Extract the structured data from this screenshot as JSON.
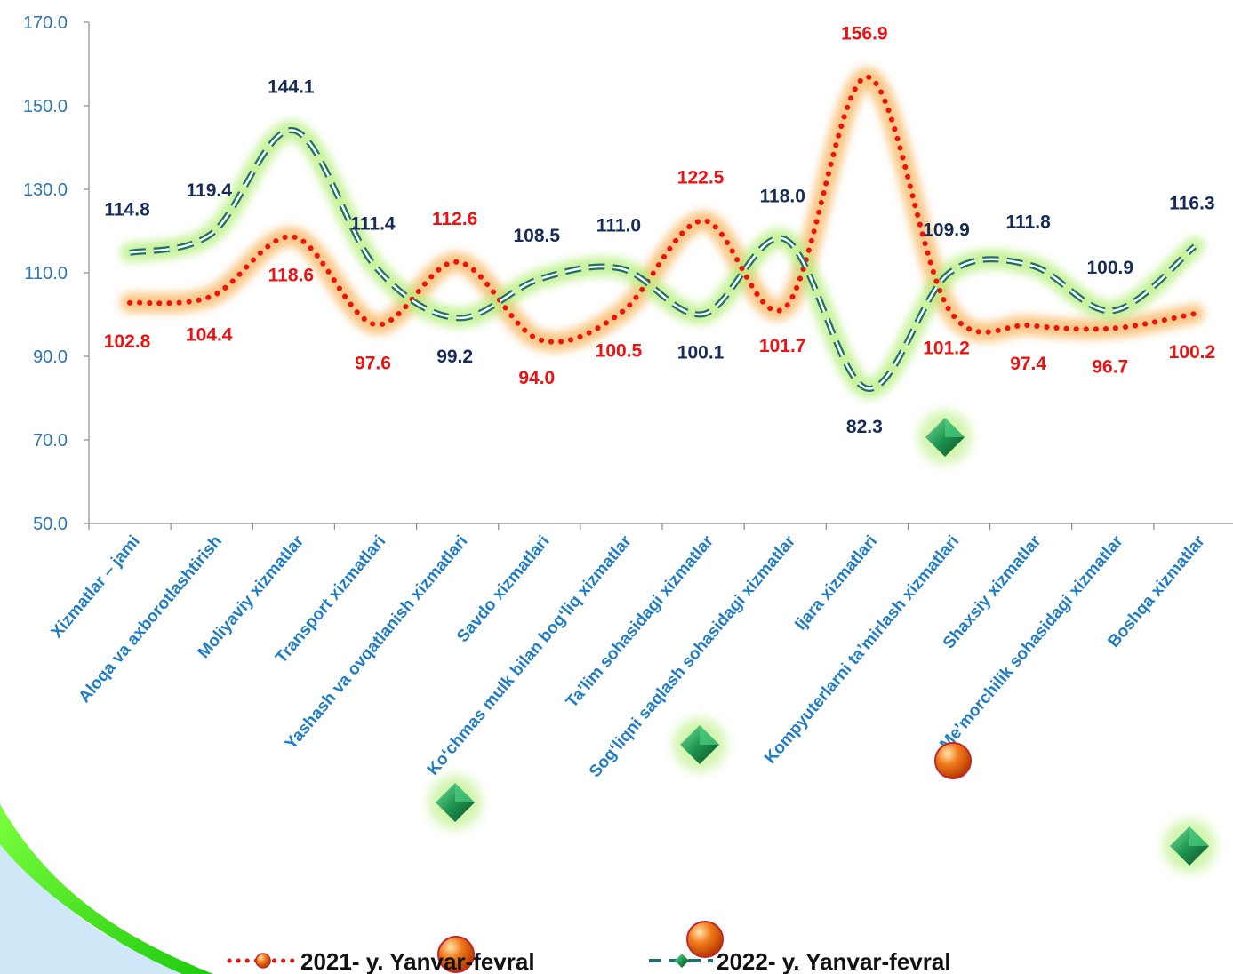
{
  "chart_data": {
    "type": "line",
    "categories": [
      "Xizmatlar – jami",
      "Aloqa va axborotlashtirish",
      "Moliyaviy xizmatlar",
      "Transport xizmatlari",
      "Yashash va ovqatlanish xizmatlari",
      "Savdo xizmatlari",
      "Ko‘chmas mulk bilan bog‘liq xizmatlar",
      "Ta’lim sohasidagi xizmatlar",
      "Sog‘liqni saqlash sohasidagi xizmatlar",
      "Ijara xizmatlari",
      "Kompyuterlarni ta’mirlash xizmatlari",
      "Shaxsiy xizmatlar",
      "Me’morchilik sohasidagi xizmatlar",
      "Boshqa xizmatlar"
    ],
    "series": [
      {
        "name": "2021- y. Yanvar-fevral",
        "color": "#EE1111",
        "glow": "#F7B45C",
        "values": [
          102.8,
          104.4,
          118.6,
          97.6,
          112.6,
          94.0,
          100.5,
          122.5,
          101.7,
          156.9,
          101.2,
          97.4,
          96.7,
          100.2
        ],
        "labels": [
          "102.8",
          "104.4",
          "118.6",
          "97.6",
          "112.6",
          "94.0",
          "100.5",
          "122.5",
          "101.7",
          "156.9",
          "101.2",
          "97.4",
          "96.7",
          "100.2"
        ]
      },
      {
        "name": "2022- y. Yanvar-fevral",
        "color": "#1F6F6A",
        "glow": "#B6EE7A",
        "values": [
          114.8,
          119.4,
          144.1,
          111.4,
          99.2,
          108.5,
          111.0,
          100.1,
          118.0,
          82.3,
          109.9,
          111.8,
          100.9,
          116.3
        ],
        "labels": [
          "114.8",
          "119.4",
          "144.1",
          "111.4",
          "99.2",
          "108.5",
          "111.0",
          "100.1",
          "118.0",
          "82.3",
          "109.9",
          "111.8",
          "100.9",
          "116.3"
        ]
      }
    ],
    "yticks": [
      "50.0",
      "70.0",
      "90.0",
      "110.0",
      "130.0",
      "150.0",
      "170.0"
    ],
    "ylim": [
      50,
      170
    ],
    "grid": false,
    "legend": "bottom"
  }
}
